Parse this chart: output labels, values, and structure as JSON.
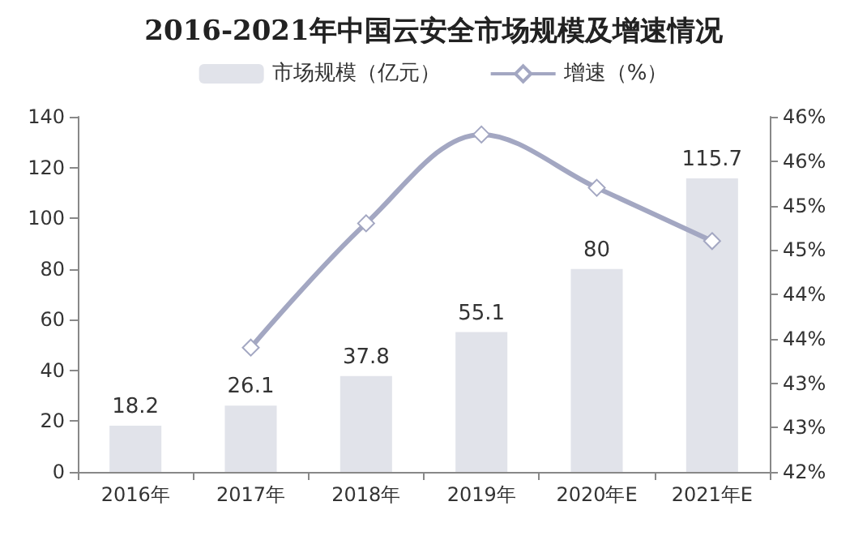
{
  "chart_data": {
    "type": "bar",
    "title": "2016-2021年中国云安全市场规模及增速情况",
    "categories": [
      "2016年",
      "2017年",
      "2018年",
      "2019年",
      "2020年E",
      "2021年E"
    ],
    "series": [
      {
        "name": "市场规模（亿元）",
        "color": "#e1e3ea",
        "values": [
          18.2,
          26.1,
          37.8,
          55.1,
          80,
          115.7
        ],
        "value_labels": [
          "18.2",
          "26.1",
          "37.8",
          "55.1",
          "80",
          "115.7"
        ]
      },
      {
        "name": "增速（%）",
        "type": "line",
        "axis": "y2",
        "color": "#a3a7c2",
        "marker": "diamond",
        "values": [
          null,
          43.4,
          44.8,
          45.8,
          45.2,
          44.6
        ]
      }
    ],
    "ylim": [
      0,
      140
    ],
    "yticks": [
      0,
      20,
      40,
      60,
      80,
      100,
      120,
      140
    ],
    "y2lim": [
      42,
      46
    ],
    "y2ticks": [
      {
        "value": 42,
        "label": "42%"
      },
      {
        "value": 42.5,
        "label": "43%"
      },
      {
        "value": 43,
        "label": "43%"
      },
      {
        "value": 43.5,
        "label": "44%"
      },
      {
        "value": 44,
        "label": "44%"
      },
      {
        "value": 44.5,
        "label": "45%"
      },
      {
        "value": 45,
        "label": "45%"
      },
      {
        "value": 45.5,
        "label": "46%"
      },
      {
        "value": 46,
        "label": "46%"
      }
    ],
    "grid": false,
    "legend": "top"
  }
}
